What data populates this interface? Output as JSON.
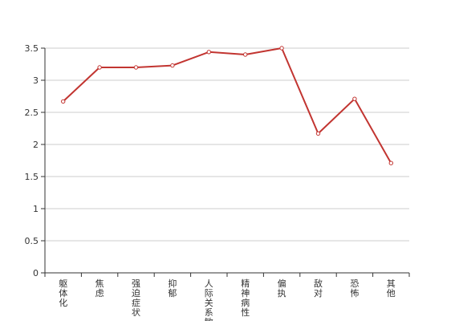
{
  "chart_data": {
    "type": "line",
    "title": "",
    "xlabel": "",
    "ylabel": "",
    "categories": [
      "躯体化",
      "焦虑",
      "强迫症状",
      "抑郁",
      "人际关系敏感",
      "精神病性",
      "偏执",
      "敌对",
      "恐怖",
      "其他"
    ],
    "series": [
      {
        "values": [
          2.67,
          3.2,
          3.2,
          3.23,
          3.44,
          3.4,
          3.5,
          2.17,
          2.71,
          1.71
        ]
      }
    ],
    "y_ticks": [
      "0",
      "0.5",
      "1",
      "1.5",
      "2",
      "2.5",
      "3",
      "3.5"
    ],
    "ylim": [
      0,
      3.5
    ],
    "grid": true,
    "legend": "none",
    "line_color": "#c23531"
  }
}
